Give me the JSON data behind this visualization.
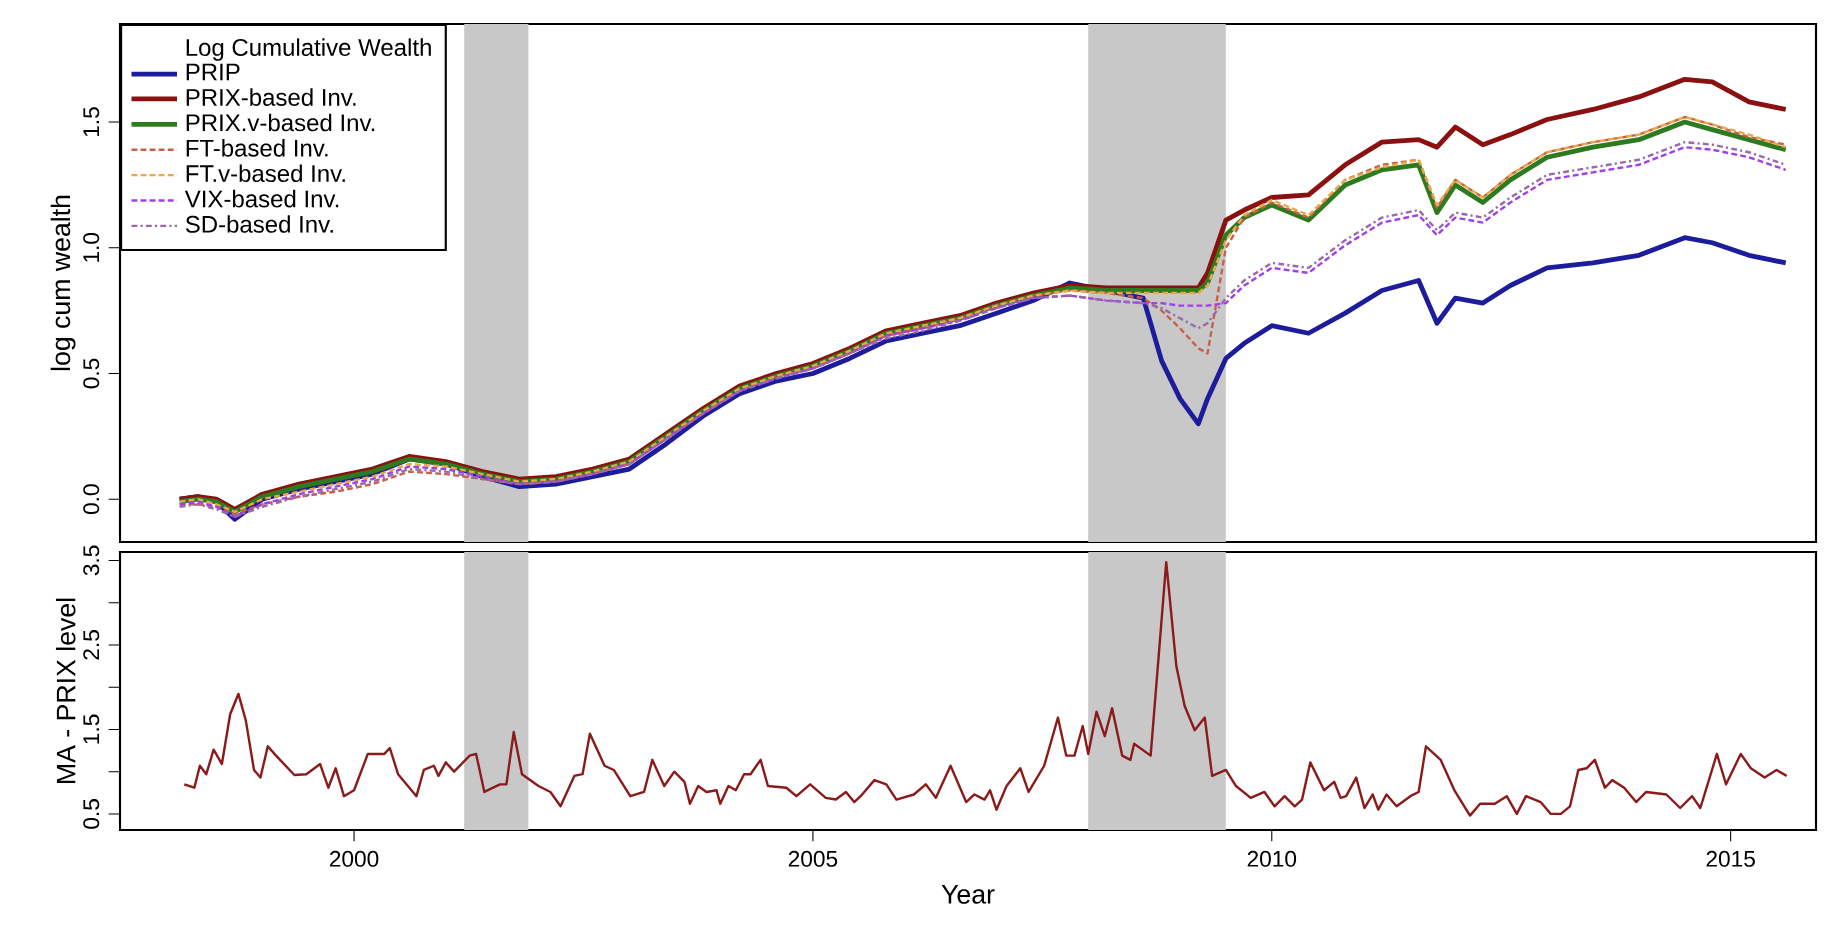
{
  "chart_data": [
    {
      "type": "line",
      "ylabel": "log cum wealth",
      "legend_title": "Log Cumulative Wealth",
      "legend": "top left",
      "tick_labels": "y",
      "xlim": [
        1997.45,
        2015.93
      ],
      "ylim": [
        -0.17,
        1.89
      ],
      "yticks": [
        {
          "value": 0,
          "label": "0.0"
        },
        {
          "value": 0.5,
          "label": "0.5"
        },
        {
          "value": 1,
          "label": "1.0"
        },
        {
          "value": 1.5,
          "label": "1.5"
        }
      ],
      "bands": [
        {
          "axis": "x",
          "from": 2001.2,
          "to": 2001.9,
          "color": "#c8c8c8"
        },
        {
          "axis": "x",
          "from": 2008.0,
          "to": 2009.5,
          "color": "#c8c8c8"
        }
      ],
      "x": [
        1998.1,
        1998.3,
        1998.5,
        1998.7,
        1999.0,
        1999.4,
        1999.8,
        2000.2,
        2000.6,
        2001.0,
        2001.4,
        2001.8,
        2002.2,
        2002.6,
        2003.0,
        2003.4,
        2003.8,
        2004.2,
        2004.6,
        2005.0,
        2005.4,
        2005.8,
        2006.2,
        2006.6,
        2007.0,
        2007.4,
        2007.8,
        2008.2,
        2008.6,
        2008.8,
        2009.0,
        2009.2,
        2009.3,
        2009.5,
        2009.7,
        2010.0,
        2010.4,
        2010.8,
        2011.2,
        2011.6,
        2011.8,
        2012.0,
        2012.3,
        2012.6,
        2013.0,
        2013.5,
        2014.0,
        2014.5,
        2014.8,
        2015.2,
        2015.6
      ],
      "series": [
        {
          "name": "PRIP",
          "color": "#1c1c9c",
          "line_style": "solid",
          "values": [
            0.0,
            0.01,
            -0.01,
            -0.08,
            0.0,
            0.04,
            0.07,
            0.1,
            0.16,
            0.14,
            0.09,
            0.05,
            0.06,
            0.09,
            0.12,
            0.22,
            0.33,
            0.42,
            0.47,
            0.5,
            0.56,
            0.63,
            0.66,
            0.69,
            0.74,
            0.79,
            0.86,
            0.83,
            0.8,
            0.55,
            0.4,
            0.3,
            0.4,
            0.56,
            0.62,
            0.69,
            0.66,
            0.74,
            0.83,
            0.87,
            0.7,
            0.8,
            0.78,
            0.85,
            0.92,
            0.94,
            0.97,
            1.04,
            1.02,
            0.97,
            0.94
          ]
        },
        {
          "name": "PRIX-based Inv.",
          "color": "#8b1010",
          "line_style": "solid",
          "values": [
            0.0,
            0.01,
            0.0,
            -0.04,
            0.02,
            0.06,
            0.09,
            0.12,
            0.17,
            0.15,
            0.11,
            0.08,
            0.09,
            0.12,
            0.16,
            0.26,
            0.36,
            0.45,
            0.5,
            0.54,
            0.6,
            0.67,
            0.7,
            0.73,
            0.78,
            0.82,
            0.85,
            0.84,
            0.84,
            0.84,
            0.84,
            0.84,
            0.9,
            1.11,
            1.15,
            1.2,
            1.21,
            1.33,
            1.42,
            1.43,
            1.4,
            1.48,
            1.41,
            1.45,
            1.51,
            1.55,
            1.6,
            1.67,
            1.66,
            1.58,
            1.55
          ]
        },
        {
          "name": "PRIX.v-based Inv.",
          "color": "#2e7a1e",
          "line_style": "solid",
          "values": [
            -0.01,
            0.0,
            -0.01,
            -0.05,
            0.01,
            0.05,
            0.08,
            0.11,
            0.16,
            0.14,
            0.1,
            0.07,
            0.08,
            0.11,
            0.15,
            0.25,
            0.35,
            0.44,
            0.49,
            0.53,
            0.59,
            0.66,
            0.69,
            0.72,
            0.77,
            0.81,
            0.84,
            0.83,
            0.83,
            0.83,
            0.83,
            0.83,
            0.86,
            1.05,
            1.12,
            1.17,
            1.11,
            1.25,
            1.31,
            1.33,
            1.14,
            1.25,
            1.18,
            1.27,
            1.36,
            1.4,
            1.43,
            1.5,
            1.47,
            1.43,
            1.39
          ]
        },
        {
          "name": "FT-based Inv.",
          "color": "#c8604a",
          "line_style": "dashed",
          "values": [
            -0.02,
            -0.02,
            -0.03,
            -0.06,
            -0.02,
            0.01,
            0.03,
            0.06,
            0.11,
            0.1,
            0.08,
            0.06,
            0.07,
            0.1,
            0.14,
            0.24,
            0.34,
            0.43,
            0.49,
            0.52,
            0.58,
            0.65,
            0.68,
            0.72,
            0.77,
            0.81,
            0.83,
            0.82,
            0.8,
            0.75,
            0.68,
            0.6,
            0.58,
            1.0,
            1.12,
            1.18,
            1.12,
            1.27,
            1.33,
            1.35,
            1.16,
            1.27,
            1.2,
            1.29,
            1.38,
            1.42,
            1.45,
            1.52,
            1.49,
            1.44,
            1.41
          ]
        },
        {
          "name": "FT.v-based Inv.",
          "color": "#e8a848",
          "line_style": "dashed",
          "values": [
            -0.01,
            0.0,
            -0.02,
            -0.05,
            0.0,
            0.03,
            0.06,
            0.09,
            0.14,
            0.13,
            0.1,
            0.07,
            0.08,
            0.11,
            0.15,
            0.25,
            0.35,
            0.44,
            0.49,
            0.53,
            0.59,
            0.66,
            0.69,
            0.72,
            0.77,
            0.81,
            0.83,
            0.82,
            0.82,
            0.82,
            0.82,
            0.82,
            0.85,
            1.03,
            1.13,
            1.19,
            1.13,
            1.27,
            1.32,
            1.35,
            1.17,
            1.27,
            1.2,
            1.29,
            1.38,
            1.42,
            1.45,
            1.52,
            1.49,
            1.45,
            1.4
          ]
        },
        {
          "name": "VIX-based Inv.",
          "color": "#a040e8",
          "line_style": "dashed",
          "values": [
            -0.02,
            -0.01,
            -0.03,
            -0.07,
            -0.02,
            0.02,
            0.05,
            0.08,
            0.13,
            0.12,
            0.09,
            0.06,
            0.07,
            0.1,
            0.14,
            0.24,
            0.34,
            0.43,
            0.48,
            0.52,
            0.58,
            0.65,
            0.68,
            0.71,
            0.76,
            0.8,
            0.81,
            0.79,
            0.78,
            0.78,
            0.77,
            0.77,
            0.77,
            0.78,
            0.85,
            0.92,
            0.9,
            1.01,
            1.1,
            1.13,
            1.05,
            1.12,
            1.1,
            1.18,
            1.27,
            1.3,
            1.33,
            1.4,
            1.39,
            1.36,
            1.31
          ]
        },
        {
          "name": "SD-based Inv.",
          "color": "#9a6aa8",
          "line_style": "dashdot",
          "values": [
            -0.03,
            -0.02,
            -0.04,
            -0.07,
            -0.03,
            0.01,
            0.04,
            0.07,
            0.12,
            0.11,
            0.08,
            0.06,
            0.07,
            0.1,
            0.14,
            0.24,
            0.34,
            0.43,
            0.48,
            0.52,
            0.58,
            0.64,
            0.67,
            0.71,
            0.76,
            0.8,
            0.81,
            0.79,
            0.78,
            0.76,
            0.72,
            0.68,
            0.7,
            0.8,
            0.87,
            0.94,
            0.92,
            1.03,
            1.12,
            1.15,
            1.07,
            1.14,
            1.12,
            1.2,
            1.29,
            1.32,
            1.35,
            1.42,
            1.41,
            1.38,
            1.33
          ]
        }
      ]
    },
    {
      "type": "line",
      "ylabel": "MA - PRIX level",
      "xlabel": "Year",
      "xlim": [
        1997.45,
        2015.93
      ],
      "ylim": [
        0.31,
        3.6
      ],
      "xticks": [
        2000,
        2005,
        2010,
        2015
      ],
      "yticks": [
        0.5,
        {
          "value": 1,
          "label": null
        },
        1.5,
        {
          "value": 2,
          "label": null
        },
        2.5,
        {
          "value": 3,
          "label": null
        },
        3.5
      ],
      "bands": [
        {
          "axis": "x",
          "from": 2001.2,
          "to": 2001.9,
          "color": "#c8c8c8"
        },
        {
          "axis": "x",
          "from": 2008.0,
          "to": 2009.5,
          "color": "#c8c8c8"
        }
      ],
      "series": [
        {
          "color": "#8b1a1a",
          "line_style": "solid",
          "x": [
            1998.15,
            1998.26,
            1998.32,
            1998.39,
            1998.47,
            1998.56,
            1998.65,
            1998.74,
            1998.82,
            1998.91,
            1998.98,
            1999.06,
            1999.15,
            1999.35,
            1999.48,
            1999.63,
            1999.72,
            1999.8,
            1999.89,
            2000.0,
            2000.15,
            2000.33,
            2000.39,
            2000.48,
            2000.68,
            2000.76,
            2000.87,
            2000.92,
            2001.0,
            2001.09,
            2001.26,
            2001.33,
            2001.42,
            2001.59,
            2001.66,
            2001.74,
            2001.83,
            2002.01,
            2002.14,
            2002.25,
            2002.4,
            2002.49,
            2002.57,
            2002.73,
            2002.83,
            2003.01,
            2003.16,
            2003.25,
            2003.38,
            2003.49,
            2003.6,
            2003.66,
            2003.75,
            2003.84,
            2003.95,
            2003.99,
            2004.08,
            2004.16,
            2004.25,
            2004.32,
            2004.43,
            2004.51,
            2004.71,
            2004.82,
            2004.97,
            2005.14,
            2005.25,
            2005.36,
            2005.45,
            2005.52,
            2005.67,
            2005.8,
            2005.91,
            2006.1,
            2006.23,
            2006.34,
            2006.5,
            2006.67,
            2006.76,
            2006.87,
            2006.93,
            2007.0,
            2007.11,
            2007.26,
            2007.35,
            2007.52,
            2007.67,
            2007.76,
            2007.85,
            2007.94,
            2008.0,
            2008.09,
            2008.18,
            2008.26,
            2008.37,
            2008.46,
            2008.5,
            2008.68,
            2008.85,
            2008.96,
            2009.05,
            2009.16,
            2009.27,
            2009.35,
            2009.5,
            2009.61,
            2009.77,
            2009.92,
            2010.03,
            2010.14,
            2010.25,
            2010.33,
            2010.42,
            2010.57,
            2010.68,
            2010.75,
            2010.81,
            2010.92,
            2011.01,
            2011.1,
            2011.16,
            2011.25,
            2011.36,
            2011.51,
            2011.6,
            2011.68,
            2011.84,
            2011.99,
            2012.16,
            2012.27,
            2012.43,
            2012.56,
            2012.67,
            2012.77,
            2012.93,
            2013.04,
            2013.15,
            2013.25,
            2013.34,
            2013.43,
            2013.52,
            2013.63,
            2013.71,
            2013.84,
            2013.97,
            2014.08,
            2014.3,
            2014.45,
            2014.58,
            2014.67,
            2014.85,
            2014.95,
            2015.11,
            2015.22,
            2015.37,
            2015.5,
            2015.61
          ],
          "values": [
            0.85,
            0.81,
            1.07,
            0.97,
            1.26,
            1.09,
            1.68,
            1.92,
            1.61,
            1.02,
            0.93,
            1.3,
            1.19,
            0.96,
            0.97,
            1.09,
            0.81,
            1.04,
            0.71,
            0.78,
            1.21,
            1.21,
            1.28,
            0.97,
            0.71,
            1.02,
            1.07,
            0.95,
            1.11,
            1.0,
            1.19,
            1.21,
            0.76,
            0.85,
            0.85,
            1.47,
            0.97,
            0.83,
            0.76,
            0.59,
            0.95,
            0.97,
            1.45,
            1.07,
            1.02,
            0.71,
            0.76,
            1.14,
            0.83,
            1.0,
            0.88,
            0.62,
            0.83,
            0.76,
            0.78,
            0.62,
            0.83,
            0.78,
            0.97,
            0.97,
            1.14,
            0.83,
            0.81,
            0.71,
            0.85,
            0.69,
            0.67,
            0.76,
            0.64,
            0.71,
            0.9,
            0.85,
            0.67,
            0.73,
            0.85,
            0.69,
            1.07,
            0.64,
            0.73,
            0.67,
            0.78,
            0.55,
            0.83,
            1.04,
            0.76,
            1.07,
            1.64,
            1.19,
            1.19,
            1.54,
            1.21,
            1.71,
            1.42,
            1.75,
            1.19,
            1.14,
            1.33,
            1.19,
            3.48,
            2.25,
            1.78,
            1.49,
            1.64,
            0.95,
            1.02,
            0.83,
            0.69,
            0.76,
            0.59,
            0.71,
            0.59,
            0.67,
            1.11,
            0.78,
            0.88,
            0.69,
            0.71,
            0.93,
            0.57,
            0.73,
            0.55,
            0.73,
            0.59,
            0.71,
            0.76,
            1.3,
            1.14,
            0.78,
            0.48,
            0.62,
            0.62,
            0.71,
            0.5,
            0.71,
            0.64,
            0.5,
            0.5,
            0.59,
            1.02,
            1.04,
            1.14,
            0.81,
            0.9,
            0.81,
            0.64,
            0.76,
            0.73,
            0.57,
            0.71,
            0.57,
            1.21,
            0.85,
            1.21,
            1.04,
            0.93,
            1.02,
            0.95
          ]
        }
      ]
    }
  ]
}
